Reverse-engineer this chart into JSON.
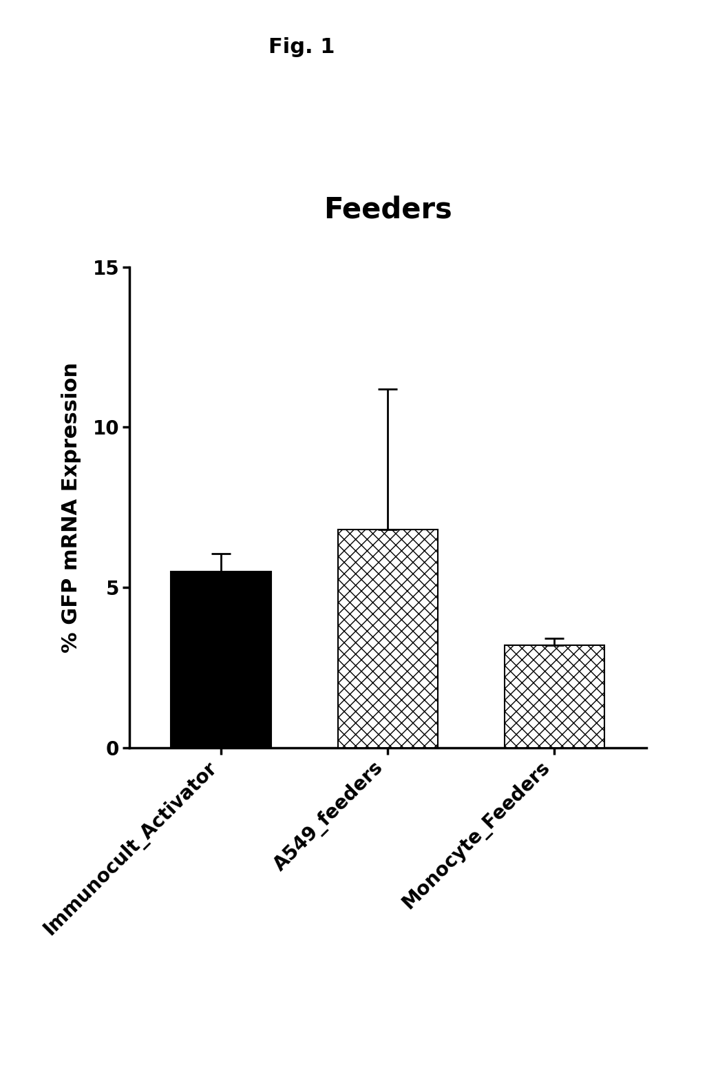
{
  "fig_label": "Fig. 1",
  "title": "Feeders",
  "ylabel": "% GFP mRNA Expression",
  "categories": [
    "Immunocult_Activator",
    "A549_feeders",
    "Monocyte_Feeders"
  ],
  "values": [
    5.5,
    6.8,
    3.2
  ],
  "errors": [
    0.55,
    4.4,
    0.2
  ],
  "ylim": [
    0,
    15
  ],
  "yticks": [
    0,
    5,
    10,
    15
  ],
  "hatch_patterns": [
    "",
    "xx",
    "xx"
  ],
  "bar_width": 0.6,
  "background_color": "#ffffff",
  "title_fontsize": 30,
  "fig_label_fontsize": 22,
  "axis_label_fontsize": 22,
  "tick_fontsize": 20,
  "xlabel_fontsize": 20,
  "spine_linewidth": 2.5,
  "error_linewidth": 2.0,
  "capsize": 10,
  "capthick": 2.0
}
